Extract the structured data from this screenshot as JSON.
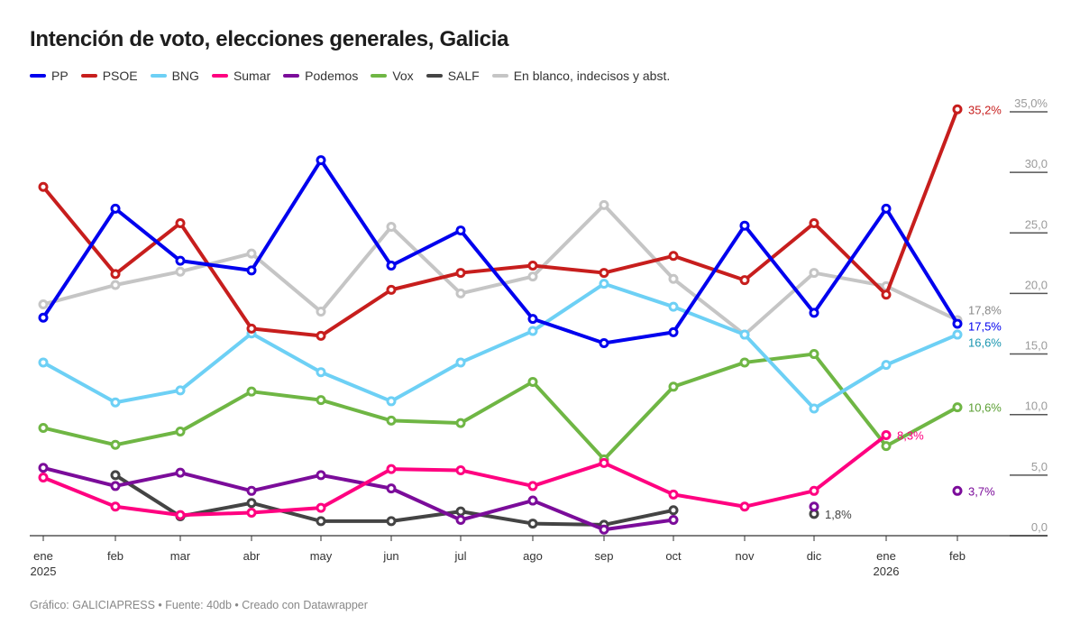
{
  "chart_data": {
    "type": "line",
    "title": "Intención de voto, elecciones generales, Galicia",
    "x_tick_labels": [
      "ene",
      "feb",
      "mar",
      "abr",
      "may",
      "jun",
      "jul",
      "ago",
      "sep",
      "oct",
      "nov",
      "dic",
      "ene",
      "feb"
    ],
    "x_year_labels": {
      "0": "2025",
      "12": "2026"
    },
    "categories": [
      "ene 2025",
      "feb 2025",
      "mar 2025",
      "abr 2025",
      "may 2025",
      "jun 2025",
      "jul 2025",
      "ago 2025",
      "sep 2025",
      "oct 2025",
      "nov 2025",
      "dic 2025",
      "ene 2026",
      "feb 2026"
    ],
    "y_ticks": [
      "0,0",
      "5,0",
      "10,0",
      "15,0",
      "20,0",
      "25,0",
      "30,0",
      "35,0%"
    ],
    "ylim": [
      0,
      35
    ],
    "legend_position": "top-left",
    "series": [
      {
        "name": "PP",
        "color": "#0000ee",
        "label_color": "#0000ee",
        "end_label": "17,5%",
        "values": [
          18.0,
          27.0,
          22.7,
          21.9,
          31.0,
          22.3,
          25.2,
          17.9,
          15.9,
          16.8,
          25.6,
          18.4,
          27.0,
          17.5
        ]
      },
      {
        "name": "PSOE",
        "color": "#c71e1d",
        "label_color": "#c71e1d",
        "end_label": "35,2%",
        "values": [
          28.8,
          21.6,
          25.8,
          17.1,
          16.5,
          20.3,
          21.7,
          22.3,
          21.7,
          23.1,
          21.1,
          25.8,
          19.9,
          35.2
        ]
      },
      {
        "name": "BNG",
        "color": "#6dd0f5",
        "label_color": "#1a96b0",
        "end_label": "16,6%",
        "values": [
          14.3,
          11.0,
          12.0,
          16.7,
          13.5,
          11.1,
          14.3,
          16.9,
          20.8,
          18.9,
          16.6,
          10.5,
          14.1,
          16.6
        ]
      },
      {
        "name": "Sumar",
        "color": "#ff0080",
        "label_color": "#ff0080",
        "end_label": "8,3%",
        "values": [
          4.8,
          2.4,
          1.7,
          1.9,
          2.3,
          5.5,
          5.4,
          4.1,
          6.0,
          3.4,
          2.4,
          3.7,
          8.3,
          null
        ]
      },
      {
        "name": "Podemos",
        "color": "#7b0c9a",
        "label_color": "#7b0c9a",
        "end_label": "3,7%",
        "values": [
          5.6,
          4.1,
          5.2,
          3.7,
          5.0,
          3.9,
          1.3,
          2.9,
          0.5,
          1.3,
          null,
          2.4,
          null,
          3.7
        ]
      },
      {
        "name": "Vox",
        "color": "#6fb644",
        "label_color": "#5a9e32",
        "end_label": "10,6%",
        "values": [
          8.9,
          7.5,
          8.6,
          11.9,
          11.2,
          9.5,
          9.3,
          12.7,
          6.3,
          12.3,
          14.3,
          15.0,
          7.4,
          10.6
        ]
      },
      {
        "name": "SALF",
        "color": "#444444",
        "label_color": "#444444",
        "end_label": "1,8%",
        "values": [
          null,
          5.0,
          1.6,
          2.7,
          1.2,
          1.2,
          2.0,
          1.0,
          0.9,
          2.1,
          null,
          1.8,
          null,
          null
        ]
      },
      {
        "name": "En blanco, indecisos y abst.",
        "color": "#c5c5c5",
        "label_color": "#888888",
        "end_label": "17,8%",
        "values": [
          19.1,
          20.7,
          21.8,
          23.3,
          18.5,
          25.5,
          20.0,
          21.4,
          27.3,
          21.2,
          16.6,
          21.7,
          20.6,
          17.8
        ]
      }
    ]
  },
  "footer": "Gráfico: GALICIAPRESS • Fuente: 40db • Creado con Datawrapper"
}
